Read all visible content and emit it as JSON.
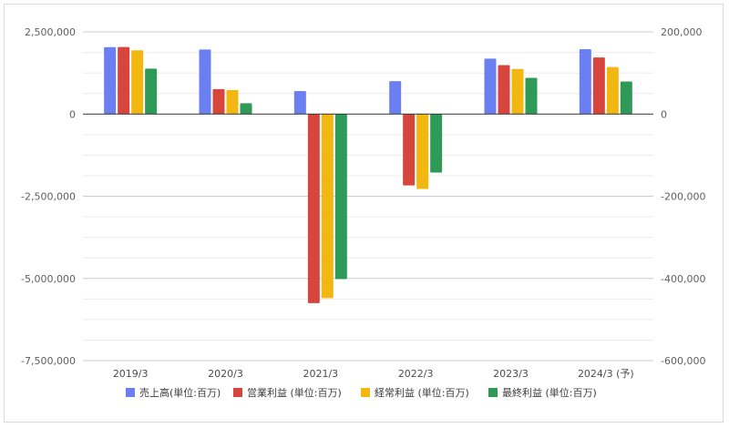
{
  "chart_data": {
    "type": "bar",
    "categories": [
      "2019/3",
      "2020/3",
      "2021/3",
      "2022/3",
      "2023/3",
      "2024/3 (予)"
    ],
    "series": [
      {
        "name": "売上高(単位:百万)",
        "axis": "right",
        "color": "#6b7ff0",
        "values": [
          163000,
          157000,
          56000,
          80000,
          135000,
          158000
        ]
      },
      {
        "name": "営業利益 (単位:百万)",
        "axis": "left",
        "color": "#d6463d",
        "values": [
          2040000,
          760000,
          -5750000,
          -2170000,
          1490000,
          1720000
        ]
      },
      {
        "name": "経常利益 (単位:百万)",
        "axis": "left",
        "color": "#f2b711",
        "values": [
          1940000,
          730000,
          -5600000,
          -2280000,
          1370000,
          1430000
        ]
      },
      {
        "name": "最終利益 (単位:百万)",
        "axis": "left",
        "color": "#2f9a57",
        "values": [
          1380000,
          330000,
          -5020000,
          -1780000,
          1100000,
          990000
        ]
      }
    ],
    "y_left": {
      "min": -7500000,
      "max": 2500000,
      "ticks": [
        "2,500,000",
        "0",
        "-2,500,000",
        "-5,000,000",
        "-7,500,000"
      ],
      "tick_values": [
        2500000,
        0,
        -2500000,
        -5000000,
        -7500000
      ]
    },
    "y_right": {
      "min": -600000,
      "max": 200000,
      "ticks": [
        "200,000",
        "0",
        "-200,000",
        "-400,000",
        "-600,000"
      ],
      "tick_values": [
        200000,
        0,
        -200000,
        -400000,
        -600000
      ]
    },
    "grid": true,
    "legend": "bottom"
  }
}
